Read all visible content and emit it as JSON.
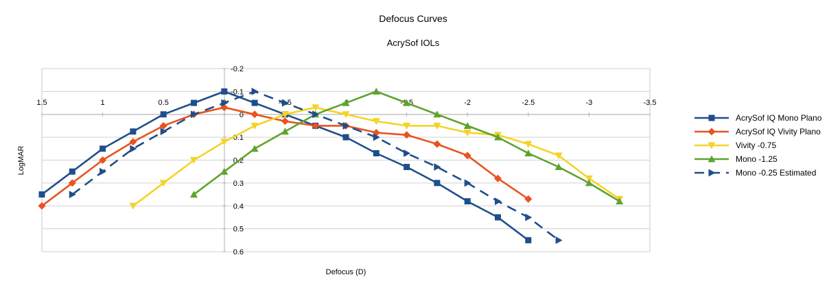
{
  "chart_data": {
    "type": "line",
    "title": "Defocus Curves",
    "subtitle": "AcrySof IOLs",
    "xlabel": "Defocus (D)",
    "ylabel": "LogMAR",
    "x_ticks": [
      "1.5",
      "1",
      "0.5",
      "0",
      "-0.5",
      "-1",
      "-1.5",
      "-2",
      "-2.5",
      "-3",
      "-3.5"
    ],
    "y_ticks": [
      "-0.2",
      "-0.1",
      "0",
      "0.1",
      "0.2",
      "0.3",
      "0.4",
      "0.5",
      "0.6"
    ],
    "xlim": [
      1.5,
      -3.5
    ],
    "ylim": [
      -0.2,
      0.6
    ],
    "x_reversed": true,
    "y_reversed": true,
    "grid": "horizontal",
    "legend_position": "right",
    "series": [
      {
        "name": "AcrySof IQ Mono Plano",
        "color": "#1f4e8c",
        "marker": "square",
        "dash": "solid",
        "x": [
          1.5,
          1.25,
          1.0,
          0.75,
          0.5,
          0.25,
          0.0,
          -0.25,
          -0.5,
          -0.75,
          -1.0,
          -1.25,
          -1.5,
          -1.75,
          -2.0,
          -2.25,
          -2.5
        ],
        "y": [
          0.35,
          0.25,
          0.15,
          0.075,
          0.0,
          -0.05,
          -0.1,
          -0.05,
          0.0,
          0.05,
          0.1,
          0.17,
          0.23,
          0.3,
          0.38,
          0.45,
          0.55
        ]
      },
      {
        "name": "AcrySof IQ Vivity Plano",
        "color": "#e8531f",
        "marker": "diamond",
        "dash": "solid",
        "x": [
          1.5,
          1.25,
          1.0,
          0.75,
          0.5,
          0.25,
          0.0,
          -0.25,
          -0.5,
          -0.75,
          -1.0,
          -1.25,
          -1.5,
          -1.75,
          -2.0,
          -2.25,
          -2.5
        ],
        "y": [
          0.4,
          0.3,
          0.2,
          0.12,
          0.05,
          0.0,
          -0.03,
          0.0,
          0.03,
          0.05,
          0.05,
          0.08,
          0.09,
          0.13,
          0.18,
          0.28,
          0.37
        ]
      },
      {
        "name": "Vivity -0.75",
        "color": "#f5d327",
        "marker": "triangle-down",
        "dash": "solid",
        "x": [
          0.75,
          0.5,
          0.25,
          0.0,
          -0.25,
          -0.5,
          -0.75,
          -1.0,
          -1.25,
          -1.5,
          -1.75,
          -2.0,
          -2.25,
          -2.5,
          -2.75,
          -3.0,
          -3.25
        ],
        "y": [
          0.4,
          0.3,
          0.2,
          0.12,
          0.05,
          0.0,
          -0.03,
          0.0,
          0.03,
          0.05,
          0.05,
          0.08,
          0.09,
          0.13,
          0.18,
          0.28,
          0.37
        ]
      },
      {
        "name": "Mono -1.25",
        "color": "#5ea32e",
        "marker": "triangle-up",
        "dash": "solid",
        "x": [
          0.25,
          0.0,
          -0.25,
          -0.5,
          -0.75,
          -1.0,
          -1.25,
          -1.5,
          -1.75,
          -2.0,
          -2.25,
          -2.5,
          -2.75,
          -3.0,
          -3.25
        ],
        "y": [
          0.35,
          0.25,
          0.15,
          0.075,
          0.0,
          -0.05,
          -0.1,
          -0.05,
          0.0,
          0.05,
          0.1,
          0.17,
          0.23,
          0.3,
          0.38
        ]
      },
      {
        "name": "Mono -0.25 Estimated",
        "color": "#1f4e8c",
        "marker": "triangle-right",
        "dash": "dashed",
        "x": [
          1.25,
          1.0,
          0.75,
          0.5,
          0.25,
          0.0,
          -0.25,
          -0.5,
          -0.75,
          -1.0,
          -1.25,
          -1.5,
          -1.75,
          -2.0,
          -2.25,
          -2.5,
          -2.75
        ],
        "y": [
          0.35,
          0.25,
          0.15,
          0.075,
          0.0,
          -0.05,
          -0.1,
          -0.05,
          0.0,
          0.05,
          0.1,
          0.17,
          0.23,
          0.3,
          0.38,
          0.45,
          0.55
        ]
      }
    ]
  }
}
